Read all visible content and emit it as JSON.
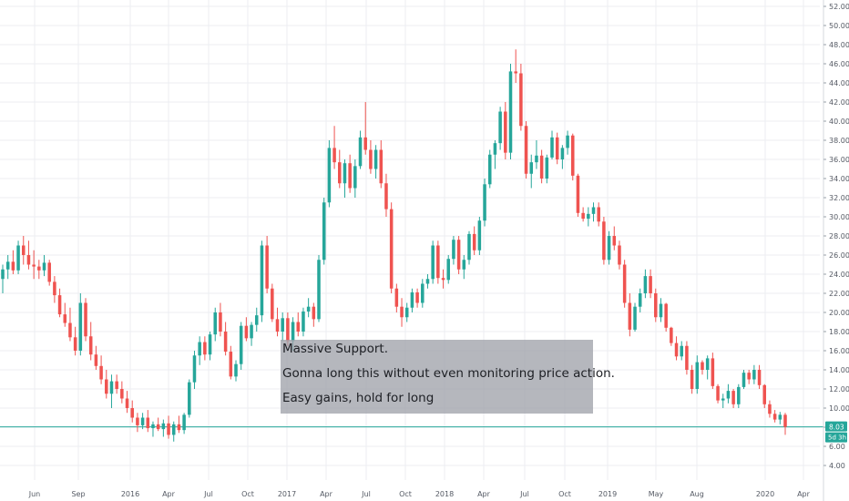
{
  "chart_data": {
    "type": "candlestick",
    "title": "",
    "xlabel": "",
    "ylabel": "",
    "ylim": [
      3.0,
      53.0
    ],
    "y_ticks": [
      "4.00",
      "6.00",
      "8.00",
      "10.00",
      "12.00",
      "14.00",
      "16.00",
      "18.00",
      "20.00",
      "22.00",
      "24.00",
      "26.00",
      "28.00",
      "30.00",
      "32.00",
      "34.00",
      "36.00",
      "38.00",
      "40.00",
      "42.00",
      "44.00",
      "46.00",
      "48.00",
      "50.00",
      "52.00"
    ],
    "x_ticks": [
      "Jun",
      "Sep",
      "2016",
      "Apr",
      "Jul",
      "Oct",
      "2017",
      "Apr",
      "Jul",
      "Oct",
      "2018",
      "Apr",
      "Jul",
      "Oct",
      "2019",
      "May",
      "Aug",
      "2020",
      "Apr"
    ],
    "grid": true,
    "last_price": 8.03,
    "last_price_label": "8.03",
    "countdown_label": "5d 3h",
    "colors": {
      "up": "#26a69a",
      "down": "#ef5350",
      "price_line": "#26a69a",
      "grid": "#eceef2",
      "axis_text": "#555a64"
    },
    "series": [
      {
        "values": [
          [
            23.5,
            25.0,
            22.0,
            24.5
          ],
          [
            24.5,
            26.0,
            23.5,
            25.3
          ],
          [
            25.3,
            26.5,
            24.0,
            24.4
          ],
          [
            24.4,
            27.5,
            24.0,
            27.0
          ],
          [
            27.0,
            28.0,
            25.0,
            26.0
          ],
          [
            26.0,
            27.5,
            24.5,
            25.0
          ],
          [
            25.0,
            26.5,
            23.5,
            24.8
          ],
          [
            24.8,
            25.5,
            23.5,
            24.4
          ],
          [
            24.4,
            26.0,
            23.8,
            25.2
          ],
          [
            25.2,
            25.5,
            22.8,
            23.2
          ],
          [
            23.2,
            23.8,
            21.0,
            21.8
          ],
          [
            21.8,
            22.5,
            19.5,
            19.8
          ],
          [
            19.8,
            21.0,
            18.5,
            18.9
          ],
          [
            18.9,
            20.5,
            17.0,
            17.4
          ],
          [
            17.4,
            18.5,
            15.5,
            16.0
          ],
          [
            16.0,
            22.0,
            15.5,
            21.0
          ],
          [
            21.0,
            21.5,
            17.0,
            17.5
          ],
          [
            17.5,
            19.0,
            15.0,
            15.6
          ],
          [
            15.6,
            16.5,
            14.0,
            14.4
          ],
          [
            14.4,
            15.5,
            12.5,
            13.0
          ],
          [
            13.0,
            14.0,
            11.0,
            11.5
          ],
          [
            11.5,
            13.5,
            10.0,
            12.8
          ],
          [
            12.8,
            13.5,
            11.5,
            12.0
          ],
          [
            12.0,
            12.8,
            10.5,
            11.0
          ],
          [
            11.0,
            11.8,
            9.5,
            10.0
          ],
          [
            10.0,
            10.8,
            8.5,
            9.0
          ],
          [
            9.0,
            9.5,
            7.5,
            8.2
          ],
          [
            8.2,
            9.5,
            7.8,
            9.0
          ],
          [
            9.0,
            9.8,
            7.5,
            7.9
          ],
          [
            7.9,
            8.6,
            7.0,
            8.3
          ],
          [
            8.3,
            9.0,
            7.6,
            7.8
          ],
          [
            7.8,
            8.8,
            7.0,
            8.4
          ],
          [
            8.4,
            9.2,
            6.8,
            7.2
          ],
          [
            7.2,
            8.6,
            6.5,
            8.3
          ],
          [
            8.3,
            9.2,
            7.4,
            7.7
          ],
          [
            7.7,
            9.5,
            7.3,
            9.3
          ],
          [
            9.3,
            13.0,
            9.0,
            12.7
          ],
          [
            12.7,
            16.0,
            12.0,
            15.5
          ],
          [
            15.5,
            17.5,
            14.5,
            16.9
          ],
          [
            16.9,
            17.5,
            15.0,
            15.6
          ],
          [
            15.6,
            18.0,
            15.0,
            17.7
          ],
          [
            17.7,
            20.5,
            17.0,
            20.0
          ],
          [
            20.0,
            21.0,
            17.5,
            18.0
          ],
          [
            18.0,
            19.0,
            15.5,
            15.9
          ],
          [
            15.9,
            16.5,
            13.0,
            13.3
          ],
          [
            13.3,
            15.0,
            12.8,
            14.6
          ],
          [
            14.6,
            19.0,
            14.0,
            18.6
          ],
          [
            18.6,
            19.5,
            17.0,
            17.3
          ],
          [
            17.3,
            19.0,
            16.5,
            18.7
          ],
          [
            18.7,
            20.5,
            18.0,
            19.7
          ],
          [
            19.7,
            27.5,
            19.0,
            27.0
          ],
          [
            27.0,
            28.0,
            22.0,
            22.5
          ],
          [
            22.5,
            23.0,
            19.0,
            19.3
          ],
          [
            19.3,
            20.5,
            17.5,
            18.0
          ],
          [
            18.0,
            20.0,
            17.0,
            19.4
          ],
          [
            19.4,
            20.0,
            16.5,
            17.0
          ],
          [
            17.0,
            19.5,
            16.0,
            19.0
          ],
          [
            19.0,
            20.0,
            17.5,
            18.0
          ],
          [
            18.0,
            20.5,
            17.5,
            20.1
          ],
          [
            20.1,
            21.5,
            19.5,
            20.6
          ],
          [
            20.6,
            21.0,
            18.5,
            19.3
          ],
          [
            19.3,
            26.0,
            19.0,
            25.5
          ],
          [
            25.5,
            32.0,
            25.0,
            31.5
          ],
          [
            31.5,
            38.0,
            31.0,
            37.2
          ],
          [
            37.2,
            39.5,
            35.0,
            35.7
          ],
          [
            35.7,
            37.0,
            33.0,
            33.5
          ],
          [
            33.5,
            36.0,
            32.0,
            35.6
          ],
          [
            35.6,
            36.5,
            32.5,
            33.0
          ],
          [
            33.0,
            36.0,
            32.0,
            35.3
          ],
          [
            35.3,
            39.0,
            35.0,
            38.3
          ],
          [
            38.3,
            42.0,
            36.5,
            37.0
          ],
          [
            37.0,
            38.0,
            34.5,
            35.0
          ],
          [
            35.0,
            37.5,
            34.0,
            37.0
          ],
          [
            37.0,
            38.0,
            33.0,
            33.5
          ],
          [
            33.5,
            34.5,
            30.0,
            30.8
          ],
          [
            30.8,
            31.5,
            22.0,
            22.5
          ],
          [
            22.5,
            23.0,
            20.0,
            20.6
          ],
          [
            20.6,
            21.5,
            18.5,
            19.5
          ],
          [
            19.5,
            21.0,
            19.0,
            20.5
          ],
          [
            20.5,
            22.5,
            20.0,
            22.1
          ],
          [
            22.1,
            22.5,
            20.5,
            21.0
          ],
          [
            21.0,
            23.5,
            20.5,
            23.0
          ],
          [
            23.0,
            24.0,
            22.5,
            23.5
          ],
          [
            23.5,
            27.5,
            23.0,
            27.0
          ],
          [
            27.0,
            27.5,
            23.0,
            23.6
          ],
          [
            23.6,
            24.5,
            22.5,
            23.4
          ],
          [
            23.4,
            26.0,
            23.0,
            25.6
          ],
          [
            25.6,
            28.0,
            25.0,
            27.6
          ],
          [
            27.6,
            28.0,
            24.0,
            24.5
          ],
          [
            24.5,
            26.0,
            23.5,
            25.5
          ],
          [
            25.5,
            28.5,
            25.0,
            28.2
          ],
          [
            28.2,
            29.0,
            26.0,
            26.5
          ],
          [
            26.5,
            30.0,
            26.0,
            29.6
          ],
          [
            29.6,
            34.0,
            29.0,
            33.4
          ],
          [
            33.4,
            37.0,
            33.0,
            36.5
          ],
          [
            36.5,
            38.0,
            35.0,
            37.7
          ],
          [
            37.7,
            41.5,
            37.0,
            41.0
          ],
          [
            41.0,
            42.0,
            36.0,
            36.7
          ],
          [
            36.7,
            46.0,
            36.0,
            45.2
          ],
          [
            45.2,
            47.5,
            44.0,
            45.0
          ],
          [
            45.0,
            46.0,
            39.0,
            39.5
          ],
          [
            39.5,
            40.0,
            34.0,
            34.5
          ],
          [
            34.5,
            36.5,
            33.0,
            35.7
          ],
          [
            35.7,
            38.0,
            35.0,
            36.4
          ],
          [
            36.4,
            37.0,
            33.5,
            34.0
          ],
          [
            34.0,
            36.5,
            33.5,
            36.2
          ],
          [
            36.2,
            39.0,
            36.0,
            38.3
          ],
          [
            38.3,
            38.8,
            35.5,
            36.0
          ],
          [
            36.0,
            37.5,
            35.0,
            37.2
          ],
          [
            37.2,
            39.0,
            36.5,
            38.5
          ],
          [
            38.5,
            38.7,
            33.8,
            34.3
          ],
          [
            34.3,
            34.5,
            30.0,
            30.4
          ],
          [
            30.4,
            31.0,
            29.5,
            29.8
          ],
          [
            29.8,
            31.0,
            29.0,
            30.3
          ],
          [
            30.3,
            31.5,
            29.5,
            31.0
          ],
          [
            31.0,
            31.5,
            29.0,
            29.5
          ],
          [
            29.5,
            30.0,
            25.0,
            25.5
          ],
          [
            25.5,
            28.5,
            25.0,
            28.0
          ],
          [
            28.0,
            29.0,
            26.5,
            27.0
          ],
          [
            27.0,
            27.5,
            24.5,
            25.0
          ],
          [
            25.0,
            25.5,
            20.5,
            21.0
          ],
          [
            21.0,
            22.0,
            17.5,
            18.2
          ],
          [
            18.2,
            21.0,
            18.0,
            20.6
          ],
          [
            20.6,
            22.5,
            20.0,
            22.0
          ],
          [
            22.0,
            24.5,
            21.5,
            23.8
          ],
          [
            23.8,
            24.5,
            21.5,
            22.0
          ],
          [
            22.0,
            22.5,
            19.0,
            19.5
          ],
          [
            19.5,
            21.5,
            19.0,
            20.9
          ],
          [
            20.9,
            21.0,
            18.0,
            18.4
          ],
          [
            18.4,
            18.5,
            16.5,
            16.8
          ],
          [
            16.8,
            17.5,
            15.0,
            15.4
          ],
          [
            15.4,
            17.0,
            15.0,
            16.5
          ],
          [
            16.5,
            17.0,
            13.5,
            14.0
          ],
          [
            14.0,
            14.5,
            11.5,
            12.0
          ],
          [
            12.0,
            15.5,
            11.5,
            14.8
          ],
          [
            14.8,
            15.0,
            13.5,
            14.0
          ],
          [
            14.0,
            15.5,
            13.0,
            15.2
          ],
          [
            15.2,
            15.8,
            12.0,
            12.3
          ],
          [
            12.3,
            12.5,
            10.5,
            10.8
          ],
          [
            10.8,
            11.5,
            10.0,
            11.0
          ],
          [
            11.0,
            12.5,
            10.5,
            11.8
          ],
          [
            11.8,
            12.0,
            10.0,
            10.4
          ],
          [
            10.4,
            12.5,
            10.0,
            12.2
          ],
          [
            12.2,
            14.0,
            12.0,
            13.7
          ],
          [
            13.7,
            14.0,
            12.5,
            13.0
          ],
          [
            13.0,
            14.5,
            12.5,
            14.0
          ],
          [
            14.0,
            14.5,
            12.0,
            12.4
          ],
          [
            12.4,
            12.5,
            10.0,
            10.4
          ],
          [
            10.4,
            10.8,
            9.0,
            9.4
          ],
          [
            9.4,
            9.8,
            8.5,
            8.8
          ],
          [
            8.8,
            9.6,
            8.3,
            9.3
          ],
          [
            9.3,
            9.5,
            7.2,
            8.03
          ]
        ]
      }
    ]
  },
  "annotation": {
    "lines": [
      "Massive Support.",
      "Gonna long this without even monitoring price action.",
      "Easy gains, hold for long"
    ]
  }
}
